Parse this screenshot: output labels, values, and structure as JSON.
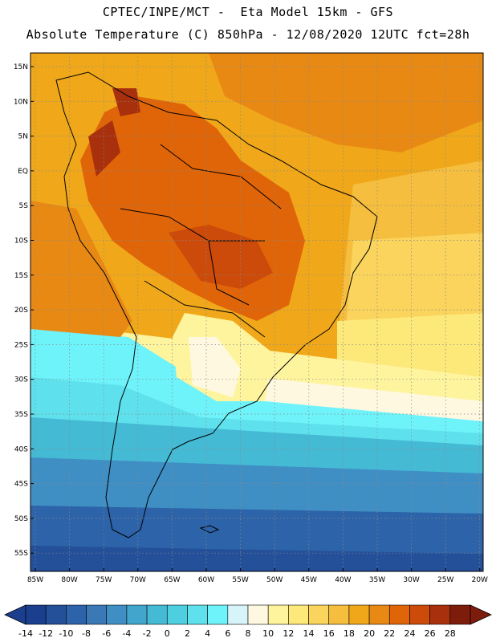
{
  "header": {
    "line1": "CPTEC/INPE/MCT -  Eta Model 15km - GFS",
    "line2": "Absolute Temperature (C) 850hPa - 12/08/2020 12UTC fct=28h"
  },
  "map": {
    "lat_labels": [
      "15N",
      "10N",
      "5N",
      "EQ",
      "5S",
      "10S",
      "15S",
      "20S",
      "25S",
      "30S",
      "35S",
      "40S",
      "45S",
      "50S",
      "55S"
    ],
    "lon_labels": [
      "85W",
      "80W",
      "75W",
      "70W",
      "65W",
      "60W",
      "55W",
      "50W",
      "45W",
      "40W",
      "35W",
      "30W",
      "25W",
      "20W"
    ]
  },
  "colorbar": {
    "labels": [
      "-14",
      "-12",
      "-10",
      "-8",
      "-6",
      "-4",
      "-2",
      "0",
      "2",
      "4",
      "6",
      "8",
      "10",
      "12",
      "14",
      "16",
      "18",
      "20",
      "22",
      "24",
      "26",
      "28"
    ],
    "colors": [
      "#1b3f8e",
      "#24509a",
      "#2d63a8",
      "#3a79b6",
      "#3f8fc4",
      "#41a5cc",
      "#45bad5",
      "#4ecfe0",
      "#5ee1ec",
      "#6ff3fa",
      "#d8f4fb",
      "#fff8e0",
      "#fff49e",
      "#fde87a",
      "#fad45c",
      "#f5be3e",
      "#f0a81a",
      "#e88914",
      "#e06508",
      "#cc4a0a",
      "#a8300c",
      "#7e1c0c"
    ]
  }
}
